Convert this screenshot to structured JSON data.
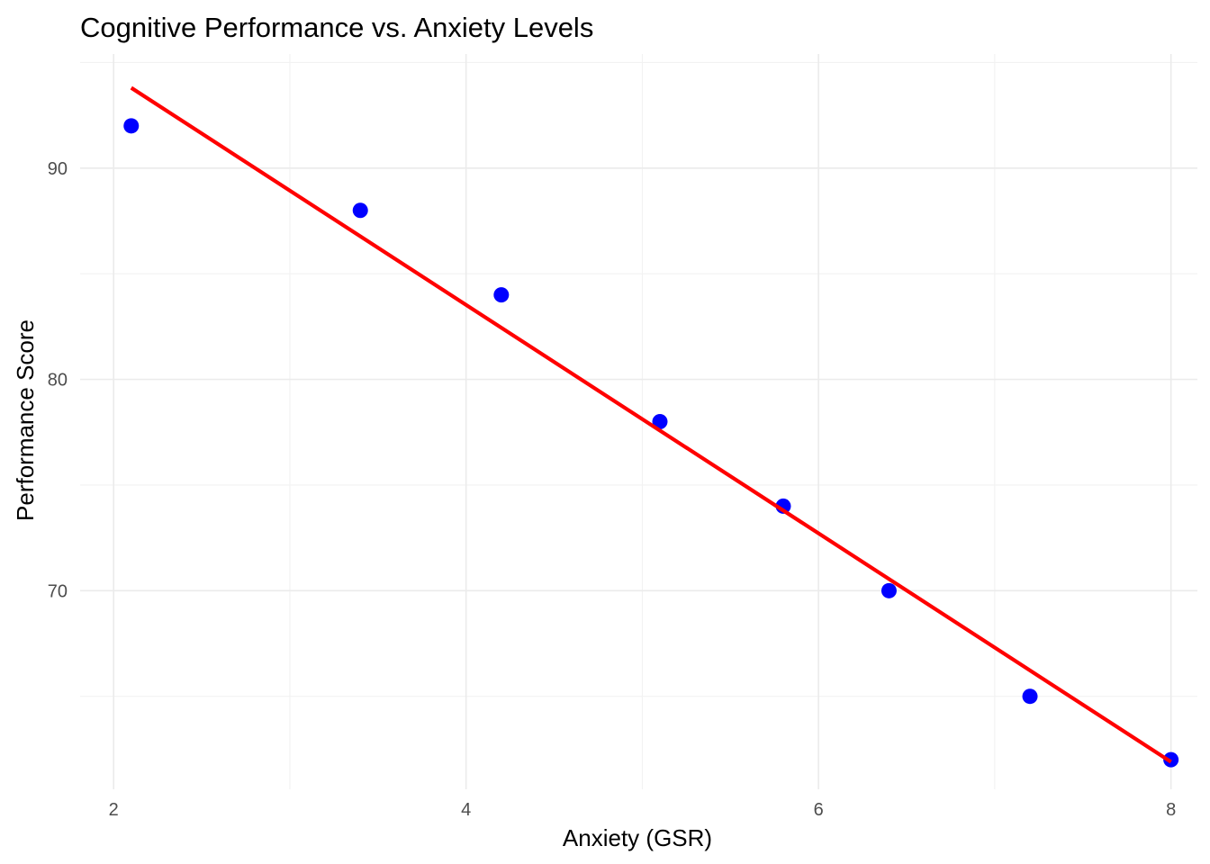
{
  "chart_data": {
    "type": "scatter",
    "title": "Cognitive Performance vs. Anxiety Levels",
    "xlabel": "Anxiety (GSR)",
    "ylabel": "Performance Score",
    "xlim": [
      1.81,
      8.15
    ],
    "ylim": [
      60.6,
      95.4
    ],
    "x_ticks": [
      2,
      4,
      6,
      8
    ],
    "x_tick_labels": [
      "2",
      "4",
      "6",
      "8"
    ],
    "x_minor_ticks": [
      3,
      5,
      7
    ],
    "y_ticks": [
      70,
      80,
      90
    ],
    "y_tick_labels": [
      "70",
      "80",
      "90"
    ],
    "y_minor_ticks": [
      65,
      75,
      85,
      95
    ],
    "grid": true,
    "legend": "none",
    "series": [
      {
        "type": "scatter",
        "color": "#0000ff",
        "x": [
          2.1,
          3.4,
          4.2,
          5.1,
          5.8,
          6.4,
          7.2,
          8.0
        ],
        "y": [
          92,
          88,
          84,
          78,
          74,
          70,
          65,
          62
        ]
      },
      {
        "type": "line",
        "color": "#ff0000",
        "x": [
          2.1,
          8.0
        ],
        "y": [
          93.8,
          61.9
        ]
      }
    ]
  }
}
